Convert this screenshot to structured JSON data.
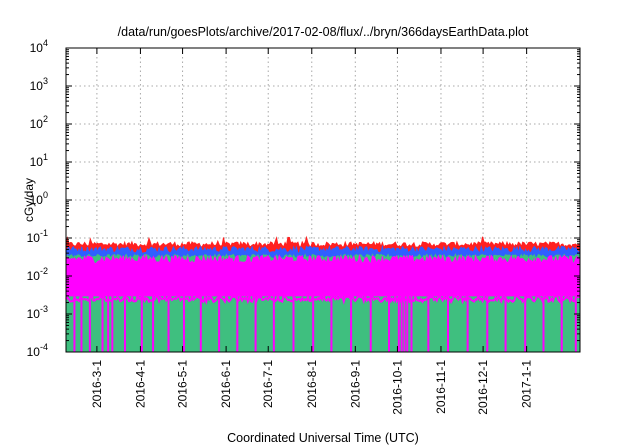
{
  "chart_data": {
    "type": "area",
    "title": "/data/run/goesPlots/archive/2017-02-08/flux/../bryn/366daysEarthData.plot",
    "xlabel": "Coordinated Universal Time (UTC)",
    "ylabel": "cGy/day",
    "yscale": "log",
    "ylim": [
      0.0001,
      10000
    ],
    "xlim": [
      "2016-02-08",
      "2017-02-08"
    ],
    "grid": true,
    "y_ticks": [
      {
        "value": 0.0001,
        "base": "10",
        "exp": "-4"
      },
      {
        "value": 0.001,
        "base": "10",
        "exp": "-3"
      },
      {
        "value": 0.01,
        "base": "10",
        "exp": "-2"
      },
      {
        "value": 0.1,
        "base": "10",
        "exp": "-1"
      },
      {
        "value": 1,
        "base": "10",
        "exp": "0"
      },
      {
        "value": 10,
        "base": "10",
        "exp": "1"
      },
      {
        "value": 100,
        "base": "10",
        "exp": "2"
      },
      {
        "value": 1000,
        "base": "10",
        "exp": "3"
      },
      {
        "value": 10000,
        "base": "10",
        "exp": "4"
      }
    ],
    "x_ticks": [
      {
        "date": "2016-03-01",
        "label": "2016-3-1"
      },
      {
        "date": "2016-04-01",
        "label": "2016-4-1"
      },
      {
        "date": "2016-05-01",
        "label": "2016-5-1"
      },
      {
        "date": "2016-06-01",
        "label": "2016-6-1"
      },
      {
        "date": "2016-07-01",
        "label": "2016-7-1"
      },
      {
        "date": "2016-08-01",
        "label": "2016-8-1"
      },
      {
        "date": "2016-09-01",
        "label": "2016-9-1"
      },
      {
        "date": "2016-10-01",
        "label": "2016-10-1"
      },
      {
        "date": "2016-11-01",
        "label": "2016-11-1"
      },
      {
        "date": "2016-12-01",
        "label": "2016-12-1"
      },
      {
        "date": "2017-01-01",
        "label": "2017-1-1"
      }
    ],
    "series": [
      {
        "color": "#ff2020",
        "typical": 0.068,
        "spread": 0.08
      },
      {
        "color": "#2f5fff",
        "typical": 0.05,
        "spread": 0.1
      },
      {
        "color": "#3fbf7f",
        "typical": 0.033,
        "spread": 0.06
      },
      {
        "color": "#ff00ff",
        "typical": 0.028,
        "spread": 0.12,
        "floor": 0.003,
        "dropouts": [
          "2016-02-14",
          "2016-02-19",
          "2016-02-25",
          "2016-03-05",
          "2016-03-09",
          "2016-03-12",
          "2016-03-21",
          "2016-04-02",
          "2016-04-10",
          "2016-04-21",
          "2016-05-02",
          "2016-05-14",
          "2016-05-27",
          "2016-06-09",
          "2016-06-22",
          "2016-07-05",
          "2016-07-19",
          "2016-08-02",
          "2016-08-15",
          "2016-08-29",
          "2016-09-12",
          "2016-09-25",
          "2016-10-02",
          "2016-10-04",
          "2016-10-06",
          "2016-10-08",
          "2016-10-11",
          "2016-10-23",
          "2016-11-06",
          "2016-11-20",
          "2016-12-04",
          "2016-12-17",
          "2016-12-31",
          "2017-01-13",
          "2017-01-26",
          "2017-02-05"
        ]
      }
    ]
  }
}
